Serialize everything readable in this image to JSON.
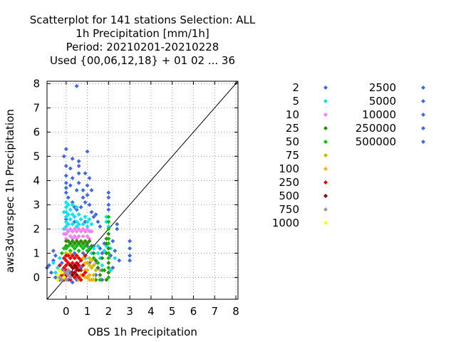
{
  "chart_data": {
    "type": "scatter",
    "title_lines": [
      "Scatterplot for  141 stations Selection: ALL",
      "1h Precipitation [mm/1h]",
      "Period: 20210201-20210228",
      "Used {00,06,12,18} + 01 02 ... 36"
    ],
    "xlabel": "OBS 1h Precipitation",
    "ylabel": "aws3dvarspec 1h Precipitation",
    "xlim": [
      -0.9,
      8.1
    ],
    "ylim": [
      -0.9,
      8.1
    ],
    "xticks": [
      "0",
      "1",
      "2",
      "3",
      "4",
      "5",
      "6",
      "7",
      "8"
    ],
    "yticks": [
      "0",
      "1",
      "2",
      "3",
      "4",
      "5",
      "6",
      "7",
      "8"
    ],
    "grid": true,
    "diagonal": true,
    "legend_position": "right",
    "legend": [
      {
        "label": "2",
        "color": "#4169e1"
      },
      {
        "label": "5",
        "color": "#00e5ee"
      },
      {
        "label": "10",
        "color": "#ee82ee"
      },
      {
        "label": "25",
        "color": "#2e8b00"
      },
      {
        "label": "50",
        "color": "#00c000"
      },
      {
        "label": "75",
        "color": "#c0c000"
      },
      {
        "label": "100",
        "color": "#ffb000"
      },
      {
        "label": "250",
        "color": "#ee0000"
      },
      {
        "label": "500",
        "color": "#8b0000"
      },
      {
        "label": "750",
        "color": "#999999"
      },
      {
        "label": "1000",
        "color": "#ffff00"
      },
      {
        "label": "2500",
        "color": "#4169e1"
      },
      {
        "label": "5000",
        "color": "#4169e1"
      },
      {
        "label": "10000",
        "color": "#4169e1"
      },
      {
        "label": "250000",
        "color": "#4169e1"
      },
      {
        "label": "500000",
        "color": "#4169e1"
      }
    ],
    "series": [
      {
        "color": "#4169e1",
        "points": [
          [
            0.5,
            7.9
          ],
          [
            0,
            5.3
          ],
          [
            -0.1,
            5.0
          ],
          [
            0.3,
            4.9
          ],
          [
            1.0,
            5.2
          ],
          [
            0,
            4.6
          ],
          [
            0.2,
            4.5
          ],
          [
            0.6,
            4.8
          ],
          [
            0.6,
            4.6
          ],
          [
            0,
            4.2
          ],
          [
            0.3,
            4.1
          ],
          [
            0.6,
            4.3
          ],
          [
            0.9,
            4.3
          ],
          [
            1.1,
            4.1
          ],
          [
            0,
            3.9
          ],
          [
            0,
            3.7
          ],
          [
            0.2,
            3.8
          ],
          [
            0.5,
            3.6
          ],
          [
            0.6,
            3.9
          ],
          [
            0.8,
            3.6
          ],
          [
            1.0,
            3.8
          ],
          [
            1.2,
            3.6
          ],
          [
            1.0,
            3.4
          ],
          [
            0.8,
            3.3
          ],
          [
            0.9,
            3.1
          ],
          [
            1.1,
            3.0
          ],
          [
            2.0,
            3.5
          ],
          [
            2.0,
            3.3
          ],
          [
            2.0,
            3.0
          ],
          [
            2.0,
            2.8
          ],
          [
            3.0,
            1.5
          ],
          [
            3.0,
            1.2
          ],
          [
            3.0,
            0.9
          ],
          [
            3.0,
            0.7
          ],
          [
            2.4,
            2.2
          ],
          [
            2.4,
            2.0
          ],
          [
            0,
            3.5
          ],
          [
            0.1,
            3.3
          ],
          [
            0.3,
            3.1
          ],
          [
            0.4,
            2.9
          ],
          [
            0.5,
            2.8
          ],
          [
            0.7,
            2.9
          ],
          [
            1.2,
            2.7
          ],
          [
            1.4,
            2.6
          ],
          [
            1.5,
            2.3
          ],
          [
            1.6,
            2.1
          ],
          [
            1.3,
            2.5
          ],
          [
            -0.6,
            1.1
          ],
          [
            -0.5,
            0.9
          ],
          [
            -0.6,
            0.7
          ],
          [
            -0.8,
            0.5
          ],
          [
            -0.9,
            0.4
          ],
          [
            -0.7,
            0.2
          ],
          [
            -0.5,
            0.0
          ],
          [
            -0.3,
            -0.1
          ],
          [
            0.1,
            -0.1
          ],
          [
            0.3,
            -0.2
          ],
          [
            0.5,
            -0.1
          ],
          [
            1.3,
            1.3
          ],
          [
            1.6,
            1.2
          ],
          [
            1.8,
            1.4
          ],
          [
            1.7,
            1.0
          ],
          [
            2.2,
            1.5
          ],
          [
            2.3,
            1.1
          ],
          [
            2.5,
            0.7
          ],
          [
            2.2,
            0.4
          ],
          [
            1.5,
            0.4
          ],
          [
            1.4,
            0.1
          ],
          [
            1.7,
            -0.1
          ],
          [
            0,
            1.8
          ],
          [
            0.2,
            1.4
          ],
          [
            0.4,
            1.0
          ],
          [
            0.6,
            1.4
          ],
          [
            0.8,
            1.0
          ],
          [
            1.0,
            1.3
          ],
          [
            1.1,
            0.6
          ],
          [
            0.7,
            0.4
          ],
          [
            0.2,
            0.2
          ],
          [
            -0.2,
            0.6
          ],
          [
            -0.2,
            0.3
          ],
          [
            0.9,
            2.3
          ],
          [
            0.4,
            2.3
          ],
          [
            0,
            2.4
          ],
          [
            2.1,
            0.9
          ]
        ]
      },
      {
        "color": "#00e5ee",
        "points": [
          [
            0,
            3.1
          ],
          [
            0,
            2.9
          ],
          [
            0,
            2.7
          ],
          [
            0,
            2.5
          ],
          [
            0,
            2.3
          ],
          [
            0,
            2.1
          ],
          [
            0.1,
            3.0
          ],
          [
            0.1,
            2.6
          ],
          [
            0.1,
            2.2
          ],
          [
            0.2,
            2.8
          ],
          [
            0.2,
            2.4
          ],
          [
            0.3,
            2.6
          ],
          [
            0.3,
            2.2
          ],
          [
            0.4,
            2.5
          ],
          [
            0.5,
            2.3
          ],
          [
            0.5,
            2.1
          ],
          [
            0.6,
            2.6
          ],
          [
            0.6,
            2.2
          ],
          [
            0.7,
            2.4
          ],
          [
            0.8,
            2.2
          ],
          [
            0.9,
            2.5
          ],
          [
            1.0,
            2.3
          ],
          [
            1.0,
            2.1
          ],
          [
            1.1,
            2.4
          ],
          [
            1.2,
            2.2
          ],
          [
            0.3,
            3.0
          ],
          [
            0.5,
            2.9
          ],
          [
            -0.1,
            2.7
          ],
          [
            -0.1,
            2.0
          ],
          [
            1.3,
            1.2
          ],
          [
            1.5,
            1.0
          ],
          [
            1.6,
            0.8
          ],
          [
            1.8,
            1.1
          ],
          [
            1.9,
            1.3
          ],
          [
            1.7,
            0.5
          ],
          [
            2.1,
            1.2
          ],
          [
            2.3,
            0.8
          ],
          [
            2.1,
            0.3
          ],
          [
            1.5,
            1.3
          ],
          [
            -0.6,
            0.6
          ],
          [
            -0.4,
            0.4
          ],
          [
            -0.3,
            0.8
          ],
          [
            -0.5,
            0.2
          ],
          [
            0.9,
            0.8
          ],
          [
            1.2,
            1.0
          ],
          [
            1.9,
            2.5
          ],
          [
            1.9,
            2.3
          ],
          [
            2.0,
            2.1
          ]
        ]
      },
      {
        "color": "#ee82ee",
        "points": [
          [
            0,
            2.0
          ],
          [
            0,
            1.8
          ],
          [
            0,
            1.6
          ],
          [
            0.1,
            1.9
          ],
          [
            0.2,
            2.0
          ],
          [
            0.2,
            1.7
          ],
          [
            0.3,
            1.9
          ],
          [
            0.4,
            2.0
          ],
          [
            0.4,
            1.7
          ],
          [
            0.5,
            1.9
          ],
          [
            0.6,
            2.0
          ],
          [
            0.6,
            1.7
          ],
          [
            0.7,
            1.9
          ],
          [
            0.8,
            2.0
          ],
          [
            0.8,
            1.7
          ],
          [
            0.9,
            1.9
          ],
          [
            1.0,
            2.0
          ],
          [
            1.0,
            1.7
          ],
          [
            1.1,
            1.9
          ],
          [
            1.1,
            1.6
          ],
          [
            -0.1,
            1.8
          ],
          [
            1.2,
            1.9
          ],
          [
            0.5,
            1.6
          ],
          [
            0.3,
            1.6
          ],
          [
            1.4,
            0.6
          ],
          [
            1.6,
            0.3
          ]
        ]
      },
      {
        "color": "#2e8b00",
        "points": [
          [
            0,
            1.5
          ],
          [
            0.1,
            1.5
          ],
          [
            0.2,
            1.4
          ],
          [
            0.3,
            1.5
          ],
          [
            0.4,
            1.4
          ],
          [
            0.5,
            1.5
          ],
          [
            0.6,
            1.4
          ],
          [
            0.7,
            1.5
          ],
          [
            0.8,
            1.4
          ],
          [
            0.9,
            1.5
          ],
          [
            1.0,
            1.4
          ],
          [
            1.1,
            1.5
          ],
          [
            1.2,
            1.3
          ],
          [
            1.3,
            1.0
          ],
          [
            1.4,
            0.7
          ],
          [
            1.5,
            0.4
          ],
          [
            1.6,
            0.1
          ],
          [
            1.4,
            -0.1
          ],
          [
            1.7,
            0.8
          ],
          [
            1.8,
            0.3
          ],
          [
            1.9,
            1.6
          ],
          [
            1.9,
            1.4
          ],
          [
            2.0,
            1.8
          ],
          [
            2.0,
            1.2
          ],
          [
            1.9,
            1.0
          ],
          [
            2.0,
            0.6
          ],
          [
            2.0,
            0.2
          ],
          [
            1.9,
            -0.1
          ],
          [
            0,
            1.3
          ]
        ]
      },
      {
        "color": "#00c000",
        "points": [
          [
            0,
            1.2
          ],
          [
            0.1,
            1.3
          ],
          [
            0.2,
            1.1
          ],
          [
            0.3,
            1.3
          ],
          [
            0.4,
            1.2
          ],
          [
            0.5,
            1.3
          ],
          [
            0.6,
            1.1
          ],
          [
            0.7,
            1.3
          ],
          [
            0.8,
            1.2
          ],
          [
            0.9,
            1.3
          ],
          [
            1.0,
            1.1
          ],
          [
            1.1,
            1.2
          ],
          [
            2.0,
            2.5
          ],
          [
            2.0,
            2.3
          ],
          [
            2.0,
            2.0
          ],
          [
            2.0,
            1.6
          ],
          [
            2.0,
            1.4
          ],
          [
            2.0,
            1.0
          ],
          [
            2.0,
            0.8
          ],
          [
            2.0,
            0.4
          ],
          [
            2.0,
            0.0
          ],
          [
            1.3,
            0.8
          ],
          [
            1.5,
            0.6
          ],
          [
            1.7,
            0.3
          ],
          [
            1.6,
            -0.1
          ],
          [
            -0.2,
            1.0
          ],
          [
            -0.1,
            1.2
          ]
        ]
      },
      {
        "color": "#c0c000",
        "points": [
          [
            0.9,
            0.3
          ],
          [
            1.0,
            0.6
          ],
          [
            1.1,
            0.8
          ],
          [
            1.2,
            0.4
          ],
          [
            1.3,
            0.1
          ],
          [
            1.2,
            -0.1
          ],
          [
            1.0,
            0.0
          ],
          [
            1.3,
            0.5
          ],
          [
            1.4,
            0.3
          ],
          [
            0,
            1.0
          ],
          [
            0.2,
            1.0
          ]
        ]
      },
      {
        "color": "#ffb000",
        "points": [
          [
            0.8,
            0.8
          ],
          [
            0.9,
            0.6
          ],
          [
            1.0,
            0.3
          ],
          [
            1.1,
            0.1
          ],
          [
            1.1,
            -0.1
          ],
          [
            0.9,
            0.0
          ],
          [
            0.7,
            0.1
          ],
          [
            1.1,
            0.5
          ],
          [
            1.2,
            0.7
          ],
          [
            0.6,
            -0.1
          ],
          [
            1.3,
            -0.1
          ]
        ]
      },
      {
        "color": "#ee0000",
        "points": [
          [
            0,
            0.9
          ],
          [
            0,
            0.7
          ],
          [
            0,
            0.5
          ],
          [
            0,
            0.3
          ],
          [
            0,
            0.1
          ],
          [
            0.1,
            0.9
          ],
          [
            0.1,
            0.6
          ],
          [
            0.1,
            0.3
          ],
          [
            0.2,
            0.8
          ],
          [
            0.2,
            0.5
          ],
          [
            0.3,
            0.9
          ],
          [
            0.3,
            0.6
          ],
          [
            0.3,
            0.2
          ],
          [
            0.4,
            0.8
          ],
          [
            0.4,
            0.4
          ],
          [
            0.5,
            0.9
          ],
          [
            0.5,
            0.6
          ],
          [
            0.5,
            0.3
          ],
          [
            0.6,
            0.8
          ],
          [
            0.6,
            0.5
          ],
          [
            0.7,
            0.7
          ],
          [
            0.7,
            0.3
          ],
          [
            0.8,
            0.5
          ],
          [
            0.9,
            0.9
          ],
          [
            0.9,
            0.2
          ],
          [
            0.8,
            0.1
          ],
          [
            -0.1,
            0.8
          ],
          [
            -0.1,
            0.4
          ],
          [
            -0.2,
            0.1
          ],
          [
            -0.1,
            -0.1
          ],
          [
            0.2,
            -0.1
          ],
          [
            0.4,
            0.0
          ],
          [
            0.6,
            0.0
          ],
          [
            0.7,
            -0.1
          ],
          [
            -0.3,
            0.5
          ]
        ]
      },
      {
        "color": "#8b0000",
        "points": [
          [
            0.2,
            0.5
          ],
          [
            0.3,
            0.4
          ],
          [
            0.4,
            0.5
          ],
          [
            0.5,
            0.4
          ],
          [
            0.6,
            0.3
          ],
          [
            0.4,
            0.2
          ],
          [
            0.3,
            0.1
          ],
          [
            0.5,
            0.1
          ]
        ]
      },
      {
        "color": "#999999",
        "points": [
          [
            0,
            0.2
          ],
          [
            0.1,
            0.1
          ],
          [
            -0.1,
            0.2
          ],
          [
            0.2,
            0.0
          ],
          [
            0,
            -0.1
          ],
          [
            -0.2,
            -0.1
          ],
          [
            -0.3,
            0.0
          ],
          [
            0.1,
            0.3
          ]
        ]
      },
      {
        "color": "#ffff00",
        "points": [
          [
            -0.2,
            0.2
          ],
          [
            -0.3,
            0.3
          ],
          [
            -0.4,
            0.1
          ],
          [
            -0.1,
            0.0
          ],
          [
            -0.4,
            -0.1
          ]
        ]
      }
    ]
  }
}
